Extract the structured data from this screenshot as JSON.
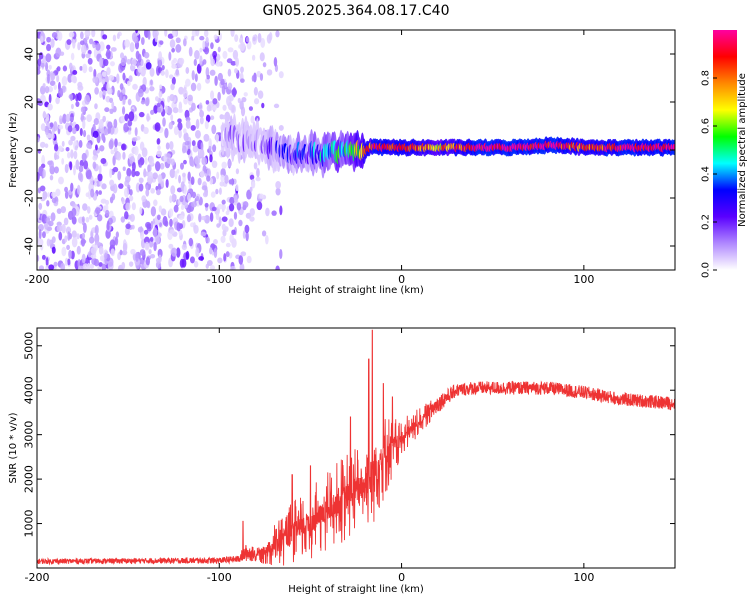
{
  "figure": {
    "title": "GN05.2025.364.08.17.C40"
  },
  "chart_data": [
    {
      "type": "heatmap",
      "title": "GN05.2025.364.08.17.C40",
      "xlabel": "Height of straight line (km)",
      "ylabel": "Frequency (Hz)",
      "xlim": [
        -200,
        150
      ],
      "ylim": [
        -50,
        50
      ],
      "xticks": [
        -200,
        -100,
        0,
        100
      ],
      "xtick_labels": [
        "-200",
        "-100",
        "0",
        "100"
      ],
      "yticks": [
        -40,
        -20,
        0,
        20,
        40
      ],
      "ytick_labels": [
        "-40",
        "-20",
        "0",
        "20",
        "40"
      ],
      "grid": false,
      "noise_region_km": [
        -200,
        -75
      ],
      "ridge": {
        "description": "narrow high-amplitude band near 0 Hz",
        "x_km": [
          -95,
          -80,
          -70,
          -60,
          -50,
          -40,
          -30,
          -20,
          -15,
          -10,
          0,
          20,
          40,
          60,
          80,
          90,
          100,
          120,
          150
        ],
        "freq_hz": [
          6,
          3,
          0,
          -2,
          -2,
          -1,
          -1,
          0,
          2,
          1,
          1,
          1,
          1,
          1,
          2,
          2,
          1,
          1,
          1
        ],
        "amplitude": [
          0.08,
          0.12,
          0.18,
          0.25,
          0.32,
          0.42,
          0.5,
          0.75,
          0.9,
          0.85,
          0.95,
          0.7,
          0.95,
          1.0,
          0.95,
          0.9,
          0.8,
          0.95,
          0.95
        ]
      },
      "colorbar": {
        "label": "Normalized spectral amplitude",
        "range": [
          0,
          1
        ],
        "ticks": [
          0.0,
          0.2,
          0.4,
          0.6,
          0.8
        ],
        "tick_labels": [
          "0.0",
          "0.2",
          "0.4",
          "0.6",
          "0.8"
        ],
        "colors": [
          "#ffffff",
          "#b088ff",
          "#5a00ff",
          "#0000ff",
          "#00ffff",
          "#00ff00",
          "#ffff00",
          "#ff8800",
          "#ff0000",
          "#ff00a0"
        ]
      }
    },
    {
      "type": "line",
      "title": "",
      "xlabel": "Height of straight line (km)",
      "ylabel": "SNR (10 * v/v)",
      "xlim": [
        -200,
        150
      ],
      "ylim": [
        0,
        5400
      ],
      "xticks": [
        -200,
        -100,
        0,
        100
      ],
      "xtick_labels": [
        "-200",
        "-100",
        "0",
        "100"
      ],
      "yticks": [
        1000,
        2000,
        3000,
        4000,
        5000
      ],
      "ytick_labels": [
        "1000",
        "2000",
        "3000",
        "4000",
        "5000"
      ],
      "grid": false,
      "series": [
        {
          "name": "SNR",
          "color": "#ee3333",
          "envelope_x": [
            -200,
            -150,
            -100,
            -90,
            -85,
            -80,
            -70,
            -60,
            -50,
            -40,
            -30,
            -20,
            -15,
            -10,
            -5,
            0,
            10,
            20,
            30,
            40,
            60,
            80,
            100,
            120,
            150
          ],
          "envelope_y": [
            150,
            160,
            170,
            200,
            350,
            300,
            500,
            800,
            1000,
            1300,
            1600,
            1900,
            2200,
            2500,
            2700,
            2900,
            3300,
            3700,
            4000,
            4050,
            4050,
            4050,
            3950,
            3800,
            3700
          ],
          "spread": [
            60,
            60,
            70,
            80,
            200,
            150,
            500,
            700,
            800,
            900,
            1000,
            1000,
            1200,
            1000,
            700,
            500,
            300,
            200,
            150,
            150,
            150,
            150,
            150,
            150,
            150
          ],
          "peaks": [
            {
              "x": -16,
              "y": 5350
            },
            {
              "x": -18,
              "y": 4700
            },
            {
              "x": -10,
              "y": 4150
            },
            {
              "x": -87,
              "y": 1050
            },
            {
              "x": -60,
              "y": 2100
            },
            {
              "x": -50,
              "y": 2300
            },
            {
              "x": -28,
              "y": 3400
            },
            {
              "x": -5,
              "y": 3850
            }
          ]
        }
      ]
    }
  ]
}
